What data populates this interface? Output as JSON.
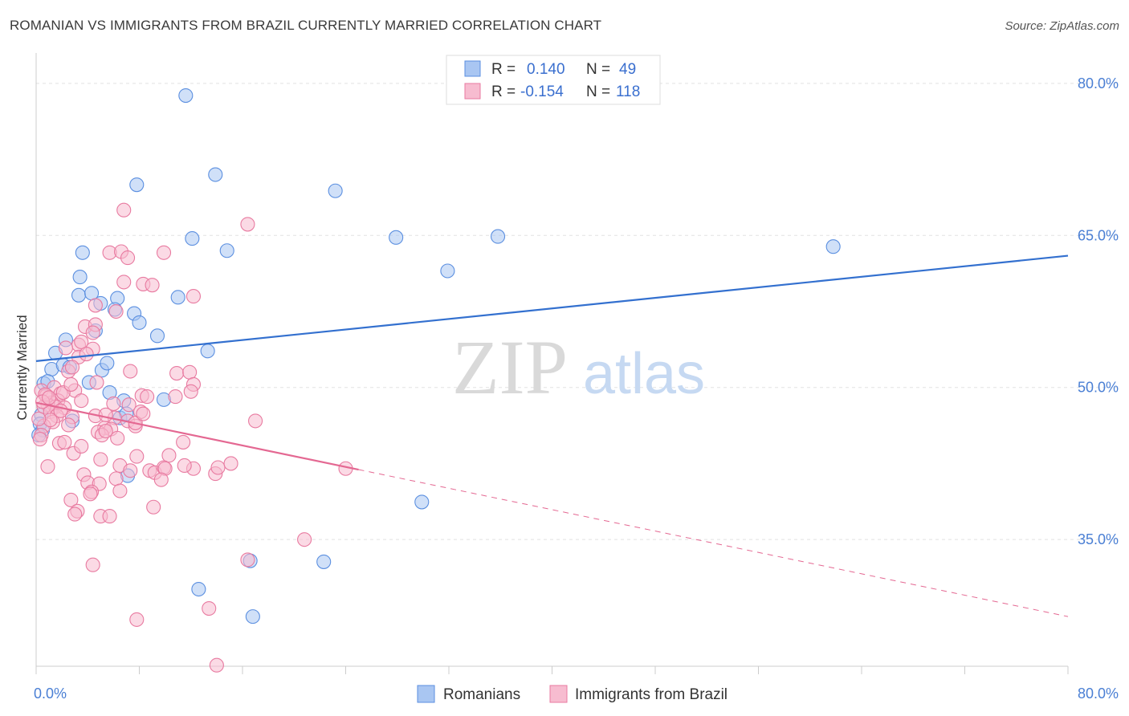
{
  "title": "ROMANIAN VS IMMIGRANTS FROM BRAZIL CURRENTLY MARRIED CORRELATION CHART",
  "source": "Source: ZipAtlas.com",
  "watermark": {
    "zip": "ZIP",
    "atlas": "atlas"
  },
  "legend": {
    "rows": [
      {
        "r_label": "R =",
        "r_value": "0.140",
        "n_label": "N =",
        "n_value": "49",
        "color": "#a9c6f2",
        "stroke": "#5b8fe0"
      },
      {
        "r_label": "R =",
        "r_value": "-0.154",
        "n_label": "N =",
        "n_value": "118",
        "color": "#f7bcd0",
        "stroke": "#e87aa0"
      }
    ]
  },
  "chart_data": {
    "type": "scatter",
    "title": "ROMANIAN VS IMMIGRANTS FROM BRAZIL CURRENTLY MARRIED CORRELATION CHART",
    "xlabel": "",
    "ylabel": "Currently Married",
    "xlim": [
      0,
      80
    ],
    "ylim": [
      22.5,
      83
    ],
    "x_tick_labels": [
      "0.0%",
      "80.0%"
    ],
    "y_ticks": [
      35,
      50,
      65,
      80
    ],
    "y_tick_labels": [
      "35.0%",
      "50.0%",
      "65.0%",
      "80.0%"
    ],
    "grid": true,
    "legend_position": "top-center",
    "series": [
      {
        "name": "Romanians",
        "color": "#a9c6f2",
        "stroke": "#5b8fe0",
        "trend": {
          "x": [
            0,
            80
          ],
          "y": [
            52.6,
            63.0
          ],
          "color": "#3370cf"
        },
        "points": [
          [
            11.6,
            78.8
          ],
          [
            7.8,
            70.0
          ],
          [
            13.9,
            71.0
          ],
          [
            23.2,
            69.4
          ],
          [
            12.1,
            64.7
          ],
          [
            14.8,
            63.5
          ],
          [
            27.9,
            64.8
          ],
          [
            35.8,
            64.9
          ],
          [
            61.8,
            63.9
          ],
          [
            3.6,
            63.3
          ],
          [
            3.4,
            60.9
          ],
          [
            31.9,
            61.5
          ],
          [
            3.3,
            59.1
          ],
          [
            4.3,
            59.3
          ],
          [
            5.0,
            58.3
          ],
          [
            6.3,
            58.8
          ],
          [
            6.1,
            57.7
          ],
          [
            7.6,
            57.3
          ],
          [
            8.0,
            56.4
          ],
          [
            11.0,
            58.9
          ],
          [
            9.4,
            55.1
          ],
          [
            4.6,
            55.6
          ],
          [
            2.3,
            54.7
          ],
          [
            1.5,
            53.4
          ],
          [
            13.3,
            53.6
          ],
          [
            0.6,
            50.4
          ],
          [
            1.2,
            51.8
          ],
          [
            2.1,
            52.2
          ],
          [
            2.6,
            52.0
          ],
          [
            5.1,
            51.7
          ],
          [
            5.5,
            52.4
          ],
          [
            4.1,
            50.5
          ],
          [
            5.7,
            49.5
          ],
          [
            6.8,
            48.7
          ],
          [
            0.9,
            50.6
          ],
          [
            0.4,
            47.3
          ],
          [
            0.3,
            46.4
          ],
          [
            0.5,
            45.8
          ],
          [
            0.2,
            45.3
          ],
          [
            2.8,
            46.7
          ],
          [
            6.5,
            47.0
          ],
          [
            7.0,
            47.4
          ],
          [
            9.9,
            48.8
          ],
          [
            7.1,
            41.3
          ],
          [
            29.9,
            38.7
          ],
          [
            16.6,
            32.9
          ],
          [
            22.3,
            32.8
          ],
          [
            12.6,
            30.1
          ],
          [
            16.8,
            27.4
          ]
        ]
      },
      {
        "name": "Immigrants from Brazil",
        "color": "#f7bcd0",
        "stroke": "#e87aa0",
        "trend": {
          "x": [
            0,
            25
          ],
          "y": [
            48.5,
            41.9
          ],
          "x_dashed": [
            25,
            80
          ],
          "y_dashed": [
            41.9,
            27.4
          ],
          "color": "#e46892"
        },
        "points": [
          [
            16.4,
            66.1
          ],
          [
            6.8,
            67.5
          ],
          [
            5.7,
            63.3
          ],
          [
            6.6,
            63.4
          ],
          [
            7.1,
            62.8
          ],
          [
            9.9,
            63.3
          ],
          [
            6.8,
            60.4
          ],
          [
            8.3,
            60.2
          ],
          [
            9.0,
            60.1
          ],
          [
            12.2,
            59.0
          ],
          [
            4.6,
            58.1
          ],
          [
            6.2,
            57.5
          ],
          [
            3.8,
            56.0
          ],
          [
            4.6,
            56.2
          ],
          [
            4.4,
            55.4
          ],
          [
            3.3,
            54.2
          ],
          [
            3.5,
            54.5
          ],
          [
            4.4,
            53.8
          ],
          [
            2.3,
            53.9
          ],
          [
            3.3,
            53.0
          ],
          [
            2.5,
            51.6
          ],
          [
            7.3,
            51.6
          ],
          [
            2.8,
            52.0
          ],
          [
            10.9,
            51.4
          ],
          [
            11.9,
            51.5
          ],
          [
            12.2,
            50.3
          ],
          [
            3.0,
            49.7
          ],
          [
            1.4,
            50.0
          ],
          [
            0.4,
            49.7
          ],
          [
            1.9,
            49.4
          ],
          [
            0.8,
            49.2
          ],
          [
            1.7,
            48.7
          ],
          [
            1.2,
            48.5
          ],
          [
            0.9,
            48.3
          ],
          [
            1.5,
            48.1
          ],
          [
            2.2,
            48.0
          ],
          [
            0.6,
            48.1
          ],
          [
            1.1,
            47.6
          ],
          [
            1.6,
            47.2
          ],
          [
            3.5,
            48.7
          ],
          [
            7.2,
            48.3
          ],
          [
            8.2,
            49.2
          ],
          [
            8.6,
            49.1
          ],
          [
            10.8,
            49.1
          ],
          [
            6.0,
            48.4
          ],
          [
            8.1,
            47.6
          ],
          [
            2.8,
            47.1
          ],
          [
            4.6,
            47.2
          ],
          [
            6.1,
            47.0
          ],
          [
            7.1,
            46.7
          ],
          [
            1.3,
            46.6
          ],
          [
            0.6,
            46.2
          ],
          [
            2.5,
            46.3
          ],
          [
            5.3,
            46.0
          ],
          [
            5.8,
            45.9
          ],
          [
            7.7,
            46.2
          ],
          [
            4.8,
            45.6
          ],
          [
            5.1,
            45.3
          ],
          [
            5.4,
            45.7
          ],
          [
            0.4,
            45.3
          ],
          [
            0.3,
            44.9
          ],
          [
            1.8,
            44.5
          ],
          [
            2.2,
            44.6
          ],
          [
            17.0,
            46.7
          ],
          [
            2.9,
            43.5
          ],
          [
            3.5,
            44.2
          ],
          [
            5.0,
            42.9
          ],
          [
            6.5,
            42.3
          ],
          [
            7.3,
            41.8
          ],
          [
            7.8,
            43.2
          ],
          [
            8.8,
            41.8
          ],
          [
            9.2,
            41.6
          ],
          [
            10.3,
            43.3
          ],
          [
            9.9,
            42.1
          ],
          [
            10.0,
            42.0
          ],
          [
            12.2,
            42.0
          ],
          [
            11.5,
            42.3
          ],
          [
            13.9,
            41.5
          ],
          [
            14.1,
            42.1
          ],
          [
            15.1,
            42.5
          ],
          [
            24.0,
            42.0
          ],
          [
            0.9,
            42.2
          ],
          [
            3.7,
            41.4
          ],
          [
            4.0,
            40.6
          ],
          [
            4.9,
            40.5
          ],
          [
            6.2,
            41.0
          ],
          [
            4.3,
            39.7
          ],
          [
            4.2,
            39.5
          ],
          [
            6.5,
            39.8
          ],
          [
            2.7,
            38.9
          ],
          [
            3.2,
            37.8
          ],
          [
            3.0,
            37.5
          ],
          [
            9.1,
            38.2
          ],
          [
            5.0,
            37.3
          ],
          [
            5.7,
            37.3
          ],
          [
            20.8,
            35.0
          ],
          [
            16.4,
            33.0
          ],
          [
            4.4,
            32.5
          ],
          [
            13.4,
            28.2
          ],
          [
            7.8,
            27.1
          ],
          [
            14.0,
            22.6
          ],
          [
            1.1,
            46.8
          ],
          [
            1.9,
            47.7
          ],
          [
            0.7,
            49.3
          ],
          [
            2.1,
            49.5
          ],
          [
            4.7,
            50.5
          ],
          [
            5.4,
            47.3
          ],
          [
            7.7,
            46.5
          ],
          [
            12.0,
            49.6
          ],
          [
            0.2,
            46.9
          ],
          [
            0.5,
            48.6
          ],
          [
            1.0,
            49.0
          ],
          [
            2.7,
            50.3
          ],
          [
            3.9,
            53.3
          ],
          [
            8.3,
            47.4
          ],
          [
            6.3,
            45.0
          ],
          [
            9.7,
            40.9
          ],
          [
            11.4,
            44.6
          ]
        ]
      }
    ]
  },
  "bottom_legend": [
    {
      "label": "Romanians",
      "color": "#a9c6f2",
      "stroke": "#5b8fe0"
    },
    {
      "label": "Immigrants from Brazil",
      "color": "#f7bcd0",
      "stroke": "#e87aa0"
    }
  ]
}
